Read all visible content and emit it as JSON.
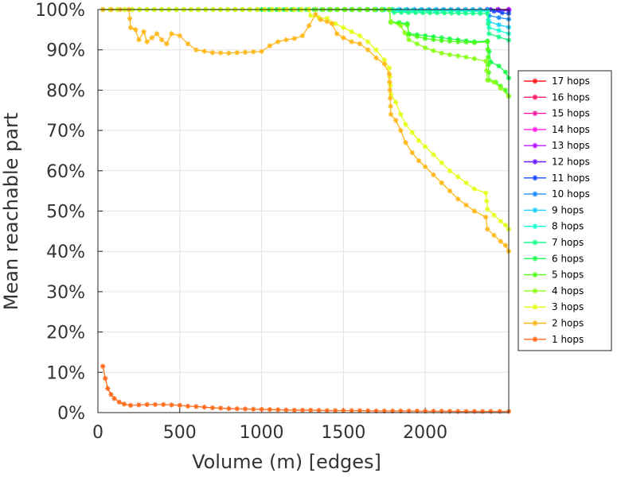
{
  "chart_data": {
    "type": "line",
    "xlabel": "Volume (m) [edges]",
    "ylabel": "Mean reachable part",
    "xlim": [
      0,
      2510
    ],
    "ylim": [
      0,
      100
    ],
    "xticks": [
      {
        "value": 0,
        "label": "0"
      },
      {
        "value": 500,
        "label": "500"
      },
      {
        "value": 1000,
        "label": "1000"
      },
      {
        "value": 1500,
        "label": "1500"
      },
      {
        "value": 2000,
        "label": "2000"
      }
    ],
    "yticks": [
      {
        "value": 0,
        "label": "0%"
      },
      {
        "value": 10,
        "label": "10%"
      },
      {
        "value": 20,
        "label": "20%"
      },
      {
        "value": 30,
        "label": "30%"
      },
      {
        "value": 40,
        "label": "40%"
      },
      {
        "value": 50,
        "label": "50%"
      },
      {
        "value": 60,
        "label": "60%"
      },
      {
        "value": 70,
        "label": "70%"
      },
      {
        "value": 80,
        "label": "80%"
      },
      {
        "value": 90,
        "label": "90%"
      },
      {
        "value": 100,
        "label": "100%"
      }
    ],
    "grid": true,
    "legend_position": "right",
    "series": [
      {
        "name": "17 hops",
        "color": "#ff1a1a",
        "points": [
          [
            2380,
            100
          ],
          [
            2510,
            100
          ]
        ]
      },
      {
        "name": "16 hops",
        "color": "#ff1a66",
        "points": [
          [
            2380,
            100
          ],
          [
            2510,
            100
          ]
        ]
      },
      {
        "name": "15 hops",
        "color": "#ff1aa8",
        "points": [
          [
            2380,
            100
          ],
          [
            2510,
            100
          ]
        ]
      },
      {
        "name": "14 hops",
        "color": "#ff1aeb",
        "points": [
          [
            2380,
            100
          ],
          [
            2510,
            100
          ]
        ]
      },
      {
        "name": "13 hops",
        "color": "#b21aff",
        "points": [
          [
            2380,
            100
          ],
          [
            2510,
            100
          ]
        ]
      },
      {
        "name": "12 hops",
        "color": "#6a1aff",
        "points": [
          [
            2380,
            100
          ],
          [
            2400,
            100
          ],
          [
            2450,
            99.8
          ],
          [
            2510,
            99.7
          ]
        ]
      },
      {
        "name": "11 hops",
        "color": "#1a4dff",
        "points": [
          [
            2380,
            100
          ],
          [
            2420,
            99.6
          ],
          [
            2470,
            99.2
          ],
          [
            2510,
            99.0
          ]
        ]
      },
      {
        "name": "10 hops",
        "color": "#1a8cff",
        "points": [
          [
            1800,
            100
          ],
          [
            2380,
            100
          ],
          [
            2390,
            98.5
          ],
          [
            2450,
            98.0
          ],
          [
            2510,
            97.6
          ]
        ]
      },
      {
        "name": "9 hops",
        "color": "#1ad1ff",
        "points": [
          [
            1700,
            100
          ],
          [
            2380,
            99.8
          ],
          [
            2390,
            97.0
          ],
          [
            2450,
            96.2
          ],
          [
            2510,
            95.6
          ]
        ]
      },
      {
        "name": "8 hops",
        "color": "#1affd1",
        "points": [
          [
            1600,
            100
          ],
          [
            2380,
            99.5
          ],
          [
            2390,
            95.5
          ],
          [
            2450,
            94.8
          ],
          [
            2510,
            94.0
          ]
        ]
      },
      {
        "name": "7 hops",
        "color": "#1aff8c",
        "points": [
          [
            1550,
            100
          ],
          [
            1800,
            100
          ],
          [
            1810,
            99.3
          ],
          [
            2380,
            99.0
          ],
          [
            2390,
            94.0
          ],
          [
            2450,
            93.2
          ],
          [
            2510,
            92.4
          ]
        ]
      },
      {
        "name": "6 hops",
        "color": "#1aff4d",
        "points": [
          [
            1000,
            100
          ],
          [
            1780,
            100
          ],
          [
            1790,
            97.0
          ],
          [
            1890,
            96.5
          ],
          [
            1900,
            94.0
          ],
          [
            2000,
            93.5
          ],
          [
            2100,
            93.0
          ],
          [
            2200,
            92.5
          ],
          [
            2300,
            92.0
          ],
          [
            2380,
            92.2
          ],
          [
            2400,
            87.0
          ],
          [
            2450,
            86.0
          ],
          [
            2490,
            84.5
          ],
          [
            2510,
            83.0
          ]
        ]
      },
      {
        "name": "5 hops",
        "color": "#4dff1a",
        "points": [
          [
            30,
            100
          ],
          [
            1780,
            100
          ],
          [
            1790,
            96.8
          ],
          [
            1890,
            96.2
          ],
          [
            1900,
            93.8
          ],
          [
            2000,
            92.8
          ],
          [
            2100,
            92.3
          ],
          [
            2200,
            92.0
          ],
          [
            2300,
            91.8
          ],
          [
            2380,
            92.0
          ],
          [
            2390,
            82.5
          ],
          [
            2430,
            82.0
          ],
          [
            2460,
            81.0
          ],
          [
            2490,
            80.0
          ],
          [
            2510,
            78.5
          ]
        ]
      },
      {
        "name": "4 hops",
        "color": "#8cff1a",
        "points": [
          [
            30,
            100
          ],
          [
            1780,
            100
          ],
          [
            1790,
            97.0
          ],
          [
            1850,
            96.0
          ],
          [
            1900,
            92.5
          ],
          [
            1950,
            91.5
          ],
          [
            2000,
            90.5
          ],
          [
            2050,
            89.8
          ],
          [
            2100,
            89.2
          ],
          [
            2150,
            88.8
          ],
          [
            2200,
            88.5
          ],
          [
            2250,
            88.2
          ],
          [
            2300,
            87.8
          ],
          [
            2370,
            87.2
          ],
          [
            2380,
            82.5
          ],
          [
            2420,
            82.0
          ],
          [
            2460,
            80.5
          ],
          [
            2510,
            78.5
          ]
        ]
      },
      {
        "name": "3 hops",
        "color": "#e6ff1a",
        "points": [
          [
            30,
            100
          ],
          [
            1290,
            100
          ],
          [
            1300,
            98.5
          ],
          [
            1350,
            98.0
          ],
          [
            1400,
            97.8
          ],
          [
            1450,
            96.5
          ],
          [
            1500,
            95.5
          ],
          [
            1550,
            94.5
          ],
          [
            1600,
            93.5
          ],
          [
            1650,
            92.0
          ],
          [
            1700,
            90.0
          ],
          [
            1750,
            87.5
          ],
          [
            1780,
            85.5
          ],
          [
            1790,
            79.0
          ],
          [
            1820,
            77.0
          ],
          [
            1850,
            74.0
          ],
          [
            1880,
            71.5
          ],
          [
            1920,
            69.5
          ],
          [
            1960,
            67.5
          ],
          [
            2000,
            66.0
          ],
          [
            2050,
            64.0
          ],
          [
            2100,
            62.0
          ],
          [
            2150,
            60.0
          ],
          [
            2200,
            58.5
          ],
          [
            2250,
            57.0
          ],
          [
            2300,
            55.5
          ],
          [
            2370,
            54.5
          ],
          [
            2380,
            50.5
          ],
          [
            2420,
            49.0
          ],
          [
            2460,
            47.5
          ],
          [
            2490,
            46.5
          ],
          [
            2510,
            45.5
          ]
        ]
      },
      {
        "name": "2 hops",
        "color": "#ffb81a",
        "points": [
          [
            30,
            100
          ],
          [
            190,
            100
          ],
          [
            200,
            95.5
          ],
          [
            230,
            95.0
          ],
          [
            250,
            92.5
          ],
          [
            280,
            94.5
          ],
          [
            300,
            92.0
          ],
          [
            330,
            93.0
          ],
          [
            360,
            94.0
          ],
          [
            390,
            92.5
          ],
          [
            420,
            91.5
          ],
          [
            450,
            94.0
          ],
          [
            500,
            93.5
          ],
          [
            550,
            91.5
          ],
          [
            600,
            90.0
          ],
          [
            700,
            89.3
          ],
          [
            800,
            89.2
          ],
          [
            900,
            89.4
          ],
          [
            1000,
            89.6
          ],
          [
            1050,
            91.0
          ],
          [
            1100,
            92.0
          ],
          [
            1150,
            92.5
          ],
          [
            1200,
            92.8
          ],
          [
            1250,
            93.5
          ],
          [
            1290,
            96.0
          ],
          [
            1330,
            98.8
          ],
          [
            1360,
            97.5
          ],
          [
            1400,
            97.0
          ],
          [
            1430,
            96.5
          ],
          [
            1460,
            94.0
          ],
          [
            1500,
            93.0
          ],
          [
            1550,
            92.0
          ],
          [
            1600,
            91.5
          ],
          [
            1650,
            90.0
          ],
          [
            1700,
            88.0
          ],
          [
            1750,
            86.5
          ],
          [
            1780,
            84.0
          ],
          [
            1790,
            74.0
          ],
          [
            1820,
            72.5
          ],
          [
            1850,
            70.0
          ],
          [
            1880,
            67.0
          ],
          [
            1920,
            64.5
          ],
          [
            1960,
            62.5
          ],
          [
            2000,
            61.0
          ],
          [
            2050,
            59.0
          ],
          [
            2100,
            57.0
          ],
          [
            2150,
            55.0
          ],
          [
            2200,
            53.0
          ],
          [
            2250,
            51.5
          ],
          [
            2300,
            50.0
          ],
          [
            2370,
            48.5
          ],
          [
            2380,
            45.5
          ],
          [
            2420,
            44.0
          ],
          [
            2460,
            42.5
          ],
          [
            2490,
            41.5
          ],
          [
            2510,
            40.0
          ]
        ]
      },
      {
        "name": "1 hops",
        "color": "#ff6a1a",
        "points": [
          [
            30,
            11.5
          ],
          [
            45,
            8.5
          ],
          [
            60,
            6.0
          ],
          [
            80,
            4.5
          ],
          [
            100,
            3.5
          ],
          [
            130,
            2.6
          ],
          [
            160,
            2.1
          ],
          [
            200,
            1.8
          ],
          [
            250,
            1.9
          ],
          [
            300,
            2.0
          ],
          [
            350,
            2.0
          ],
          [
            400,
            2.0
          ],
          [
            450,
            1.9
          ],
          [
            500,
            1.8
          ],
          [
            550,
            1.6
          ],
          [
            600,
            1.5
          ],
          [
            700,
            1.2
          ],
          [
            800,
            1.0
          ],
          [
            900,
            0.9
          ],
          [
            1000,
            0.8
          ],
          [
            1100,
            0.7
          ],
          [
            1200,
            0.6
          ],
          [
            1300,
            0.6
          ],
          [
            1400,
            0.5
          ],
          [
            1500,
            0.5
          ],
          [
            1600,
            0.5
          ],
          [
            1700,
            0.4
          ],
          [
            1800,
            0.4
          ],
          [
            1900,
            0.4
          ],
          [
            2000,
            0.35
          ],
          [
            2100,
            0.35
          ],
          [
            2200,
            0.3
          ],
          [
            2300,
            0.3
          ],
          [
            2400,
            0.3
          ],
          [
            2510,
            0.3
          ]
        ]
      }
    ]
  }
}
